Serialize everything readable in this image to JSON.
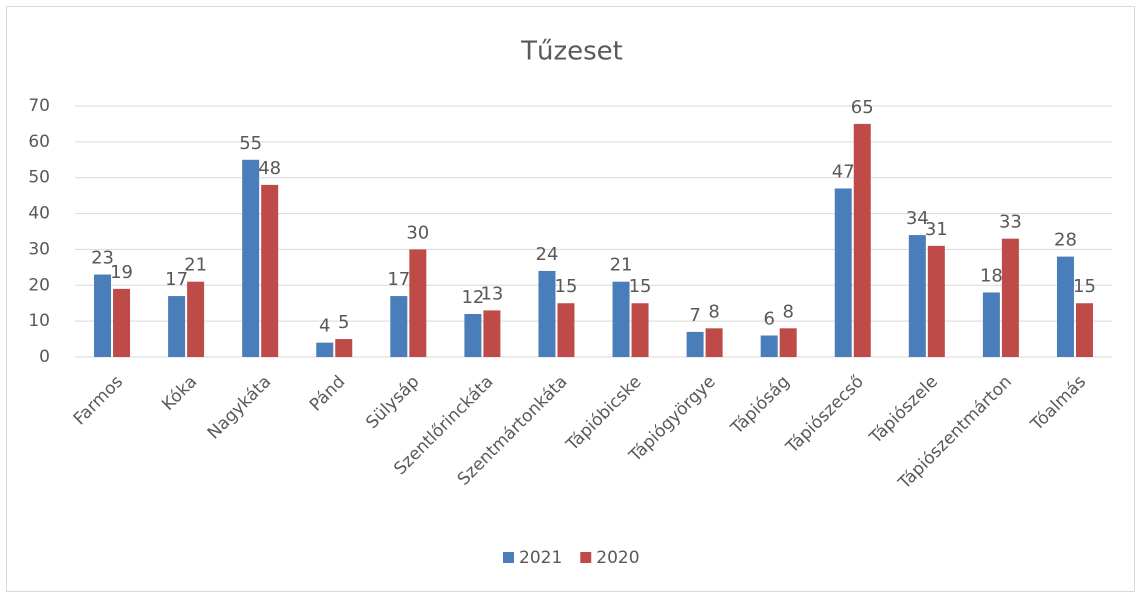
{
  "chart_data": {
    "type": "bar",
    "title": "Tűzeset",
    "categories": [
      "Farmos",
      "Kóka",
      "Nagykáta",
      "Pánd",
      "Sülysáp",
      "Szentlőrinckáta",
      "Szentmártonkáta",
      "Tápióbicske",
      "Tápiógyörgye",
      "Tápióság",
      "Tápiószecső",
      "Tápiószele",
      "Tápiószentmárton",
      "Tóalmás"
    ],
    "series": [
      {
        "name": "2021",
        "color": "#4a7ebb",
        "values": [
          23,
          17,
          55,
          4,
          17,
          12,
          24,
          21,
          7,
          6,
          47,
          34,
          18,
          28
        ]
      },
      {
        "name": "2020",
        "color": "#be4b48",
        "values": [
          19,
          21,
          48,
          5,
          30,
          13,
          15,
          15,
          8,
          8,
          65,
          31,
          33,
          15
        ]
      }
    ],
    "ylim": [
      0,
      70
    ],
    "yticks": [
      0,
      10,
      20,
      30,
      40,
      50,
      60,
      70
    ],
    "grid": true,
    "legend": "bottom"
  }
}
